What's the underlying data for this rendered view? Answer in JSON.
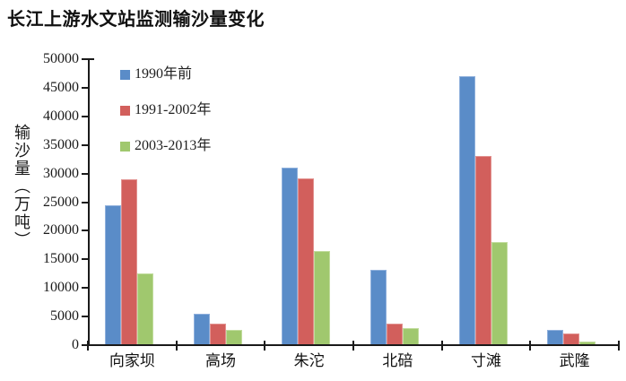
{
  "chart_data": {
    "type": "bar",
    "title": "长江上游水文站监测输沙量变化",
    "ylabel": "输沙量（万吨）",
    "xlabel": "",
    "categories": [
      "向家坝",
      "高场",
      "朱沱",
      "北碚",
      "寸滩",
      "武隆"
    ],
    "series": [
      {
        "name": "1990年前",
        "color": "#5A8CC8",
        "border_color": "#8FB0DC",
        "values": [
          24500,
          5500,
          31000,
          13200,
          47000,
          2700
        ]
      },
      {
        "name": "1991-2002年",
        "color": "#D25F5C",
        "border_color": "#E29290",
        "values": [
          29000,
          3800,
          29200,
          3700,
          33000,
          2000
        ]
      },
      {
        "name": "2003-2013年",
        "color": "#A0C86E",
        "border_color": "#C1DC9D",
        "values": [
          12500,
          2600,
          16500,
          2900,
          18100,
          600
        ]
      }
    ],
    "ylim": [
      0,
      50000
    ],
    "ytick_step": 5000,
    "yticks": [
      0,
      5000,
      10000,
      15000,
      20000,
      25000,
      30000,
      35000,
      40000,
      45000,
      50000
    ],
    "grid": false,
    "legend_position": "inside-top-left",
    "axis_color": "#1a1a1a",
    "background_color": "#ffffff"
  }
}
